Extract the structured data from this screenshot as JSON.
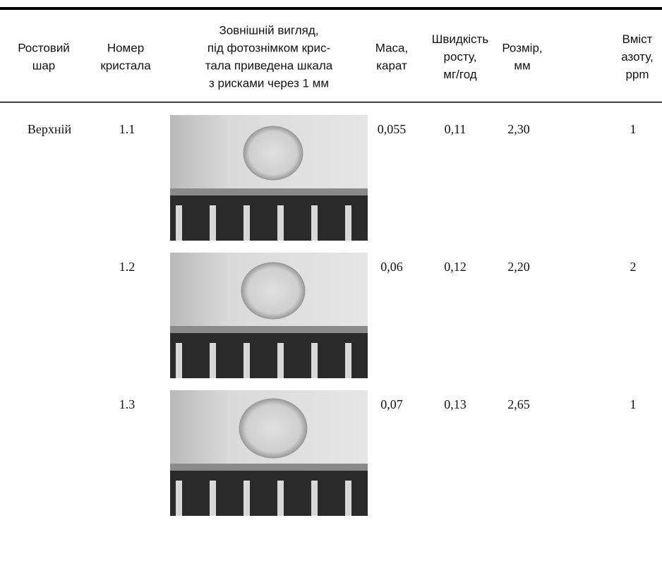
{
  "table": {
    "headers": [
      [
        "Ростовий",
        "шар"
      ],
      [
        "Номер",
        "кристала"
      ],
      [
        "Зовнішній вигляд,",
        "під фотознімком крис-",
        "тала приведена шкала",
        "з рисками через 1 мм"
      ],
      [
        "Маса,",
        "карат"
      ],
      [
        "Швидкість",
        "росту,",
        "мг/год"
      ],
      [
        "Розмір,",
        "мм"
      ],
      [
        "Вміст",
        "азоту,",
        "ppm"
      ]
    ],
    "groups": [
      {
        "layer": "Верхній",
        "crystals": [
          {
            "number": "1.1",
            "mass": "0,055",
            "rate": "0,11",
            "size": "2,30",
            "nitrogen": "1"
          },
          {
            "number": "1.2",
            "mass": "0,06",
            "rate": "0,12",
            "size": "2,20",
            "nitrogen": "2"
          },
          {
            "number": "1.3",
            "mass": "0,07",
            "rate": "0,13",
            "size": "2,65",
            "nitrogen": "1"
          }
        ]
      }
    ]
  }
}
